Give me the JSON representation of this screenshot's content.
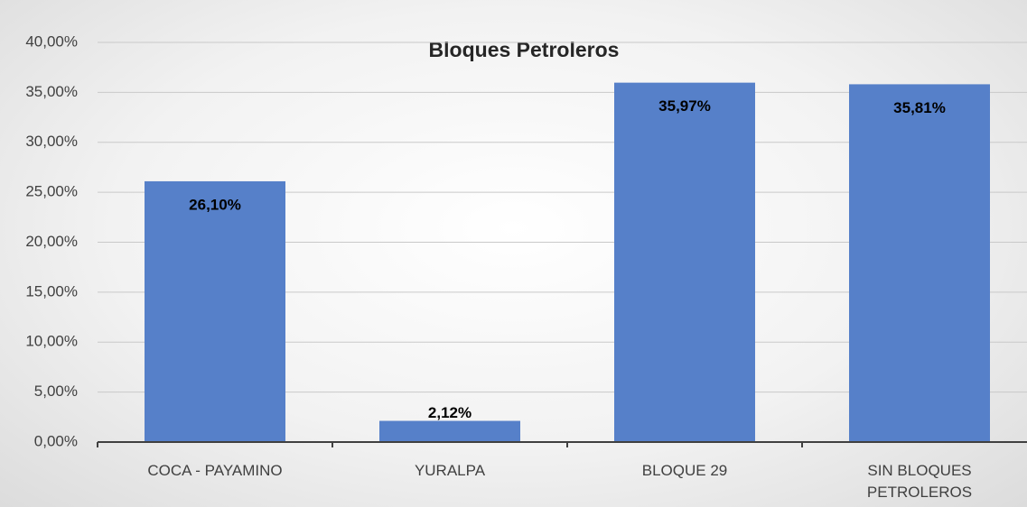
{
  "chart_data": {
    "type": "bar",
    "title": "Bloques Petroleros",
    "categories": [
      "COCA - PAYAMINO",
      "YURALPA",
      "BLOQUE 29",
      "SIN BLOQUES PETROLEROS"
    ],
    "values": [
      26.1,
      2.12,
      35.97,
      35.81
    ],
    "value_labels": [
      "26,10%",
      "2,12%",
      "35,97%",
      "35,81%"
    ],
    "color": "#5680c9",
    "ylim": [
      0,
      40
    ],
    "yticks": [
      {
        "value": 0,
        "label": "0,00%"
      },
      {
        "value": 5,
        "label": "5,00%"
      },
      {
        "value": 10,
        "label": "10,00%"
      },
      {
        "value": 15,
        "label": "15,00%"
      },
      {
        "value": 20,
        "label": "20,00%"
      },
      {
        "value": 25,
        "label": "25,00%"
      },
      {
        "value": 30,
        "label": "30,00%"
      },
      {
        "value": 35,
        "label": "35,00%"
      },
      {
        "value": 40,
        "label": "40,00%"
      }
    ],
    "grid": true
  }
}
